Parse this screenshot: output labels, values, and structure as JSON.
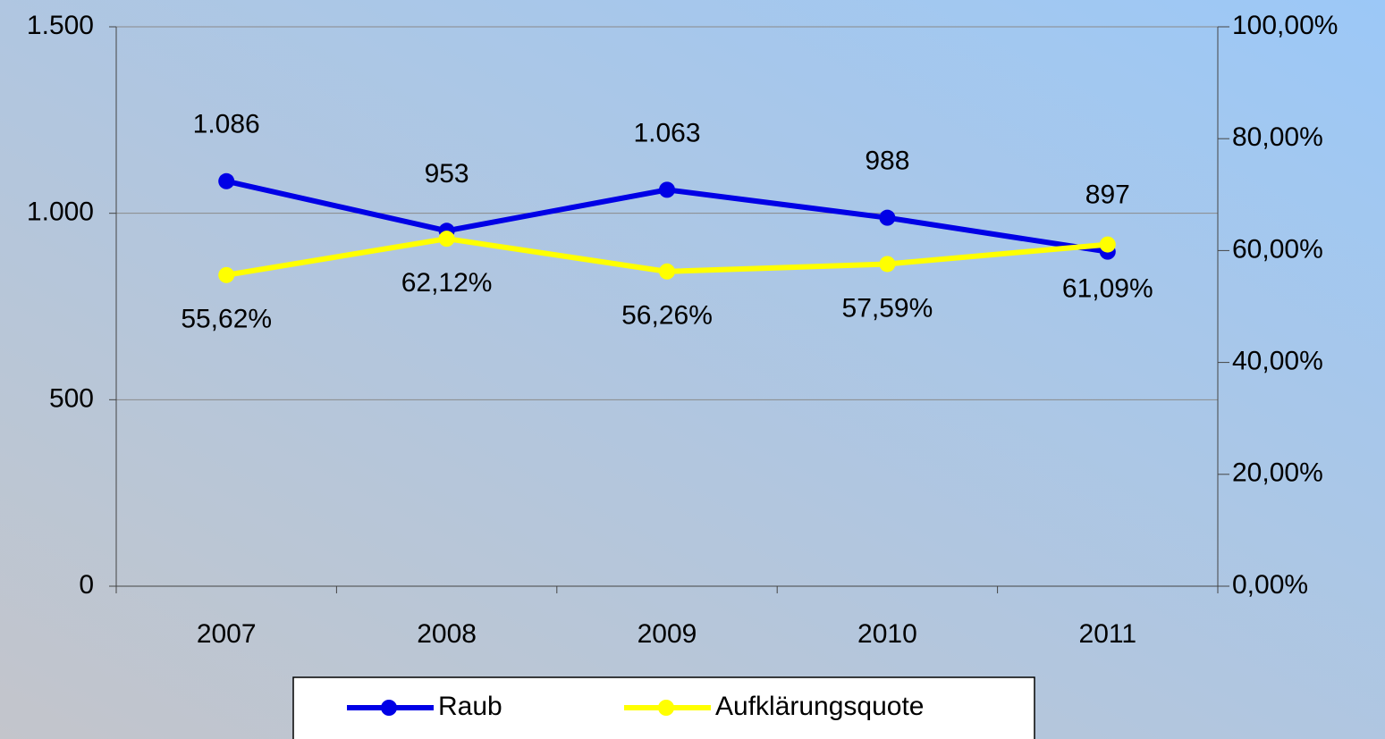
{
  "chart_data": {
    "type": "line",
    "categories": [
      "2007",
      "2008",
      "2009",
      "2010",
      "2011"
    ],
    "series": [
      {
        "name": "Raub",
        "color": "#0000e6",
        "values": [
          1086,
          953,
          1063,
          988,
          897
        ],
        "value_labels": [
          "1.086",
          "953",
          "1.063",
          "988",
          "897"
        ]
      },
      {
        "name": "Aufklärungsquote",
        "color": "#ffff00",
        "axis": "y2",
        "values": [
          55.62,
          62.12,
          56.26,
          57.59,
          61.09
        ],
        "value_labels": [
          "55,62%",
          "62,12%",
          "56,26%",
          "57,59%",
          "61,09%"
        ]
      }
    ],
    "ylim": [
      0,
      1500
    ],
    "yticks": [
      0,
      500,
      {
        "value": 1000,
        "label": "1.000"
      },
      {
        "value": 1500,
        "label": "1.500"
      }
    ],
    "y2lim": [
      0,
      100
    ],
    "y2ticks": [
      {
        "value": 0,
        "label": "0,00%"
      },
      {
        "value": 20,
        "label": "20,00%"
      },
      {
        "value": 40,
        "label": "40,00%"
      },
      {
        "value": 60,
        "label": "60,00%"
      },
      {
        "value": 80,
        "label": "80,00%"
      },
      {
        "value": 100,
        "label": "100,00%"
      }
    ],
    "grid": true,
    "legend": "bottom"
  }
}
